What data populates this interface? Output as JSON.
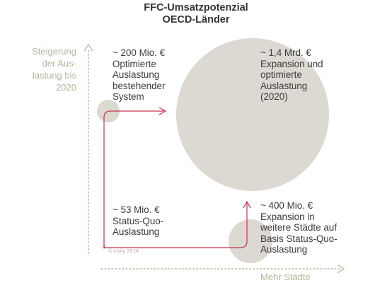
{
  "title": {
    "line1": "FFC-Umsatzpotenzial",
    "line2": "OECD-Länder"
  },
  "axes": {
    "y_label": [
      "Steigerung",
      "der Aus-",
      "lastung bis",
      "2020"
    ],
    "x_label": "Mehr Städte"
  },
  "annotations": {
    "top_left": [
      "~ 200 Mio. €",
      "Optimierte",
      "Auslastung",
      "bestehender",
      "System"
    ],
    "top_right": [
      "~ 1,4 Mrd. €",
      "Expansion und",
      "optimierte",
      "Auslastung",
      "(2020)"
    ],
    "bottom_left": [
      "~ 53 Mio. €",
      "Status-Quo-",
      "Auslastung"
    ],
    "bottom_right": [
      "~ 400 Mio. €",
      "Expansion in",
      "weitere Städte auf",
      "Basis Status-Quo-",
      "Auslastung"
    ]
  },
  "copyright": "© civity 2014",
  "colors": {
    "bubble": "#dcd8d2",
    "arrow": "#c4354a",
    "axis": "#b7b39d",
    "text": "#3b3b3b"
  }
}
